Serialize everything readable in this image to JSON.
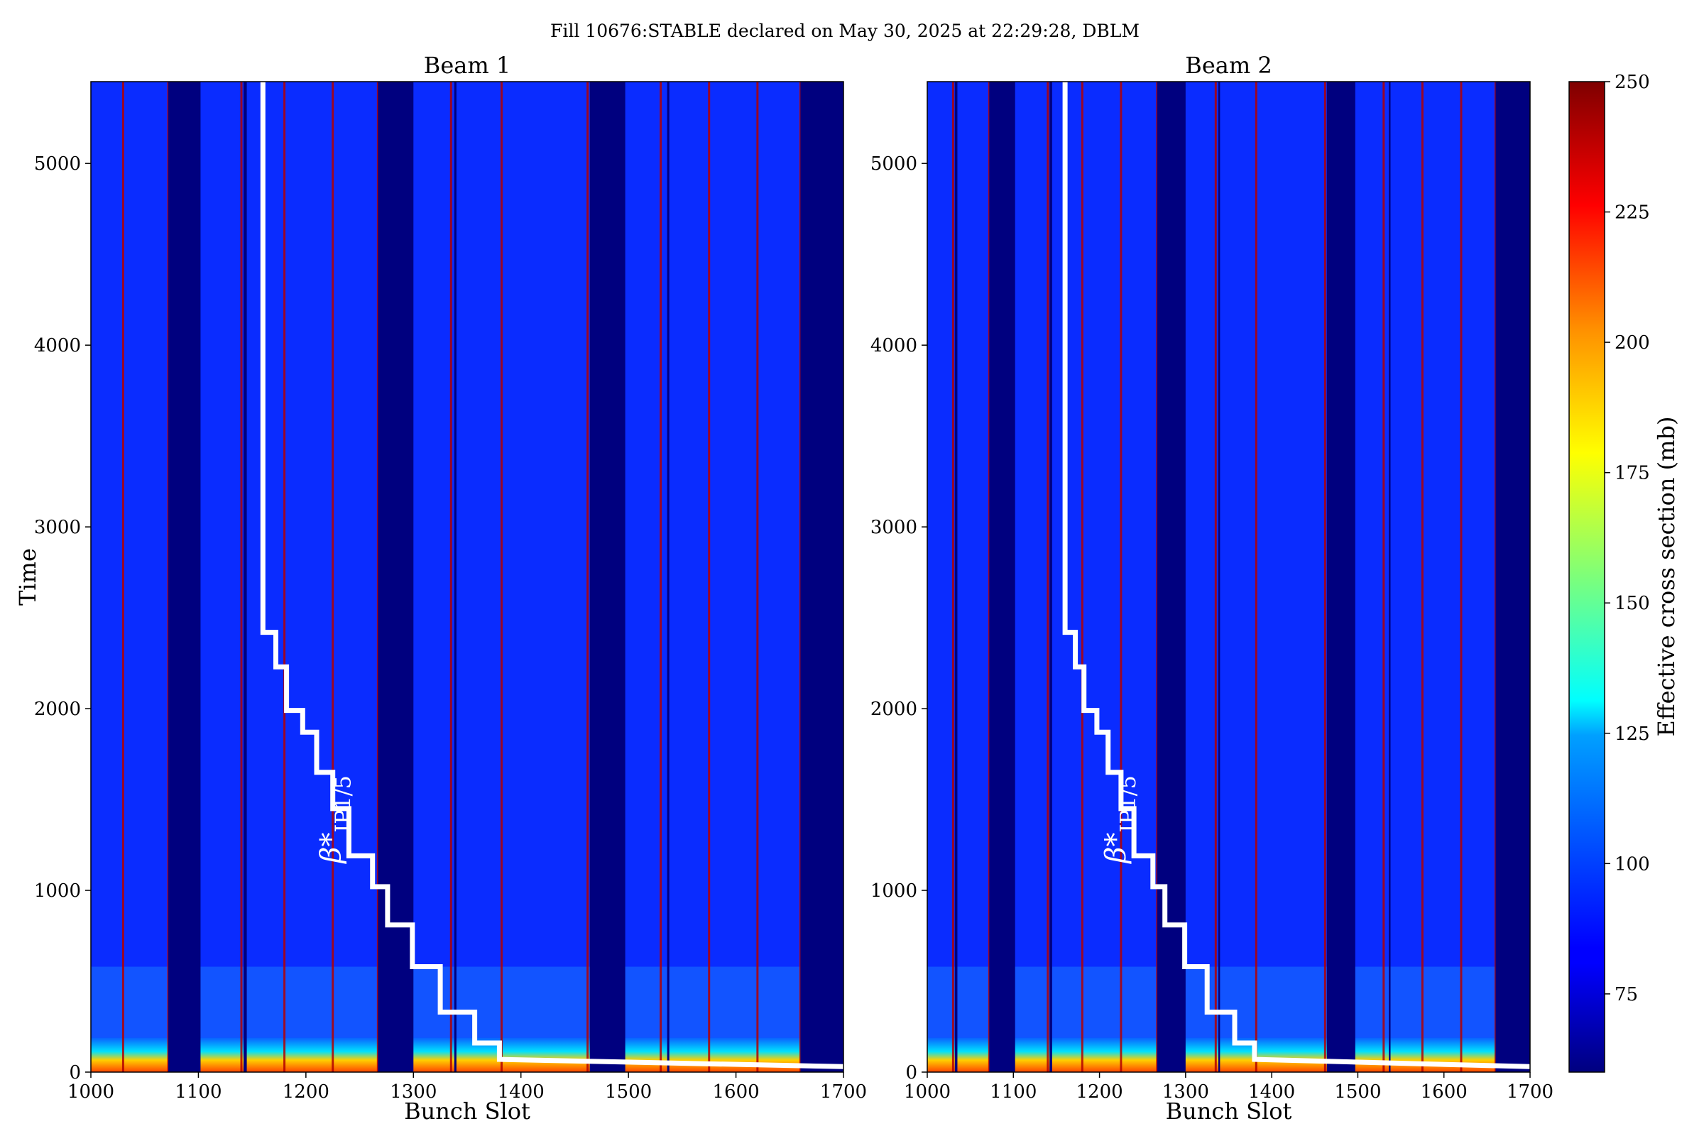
{
  "figure_title": "Fill 10676:STABLE declared on May 30, 2025 at 22:29:28, DBLM",
  "chart_data": [
    {
      "type": "heatmap",
      "title": "Beam 1",
      "xlabel": "Bunch Slot",
      "ylabel": "Time",
      "xlim": [
        1000,
        1700
      ],
      "ylim": [
        0,
        5450
      ],
      "xticks": [
        1000,
        1100,
        1200,
        1300,
        1400,
        1500,
        1600,
        1700
      ],
      "yticks": [
        0,
        1000,
        2000,
        3000,
        4000,
        5000
      ],
      "empty_gaps": [
        [
          1072,
          1102
        ],
        [
          1142,
          1145
        ],
        [
          1267,
          1300
        ],
        [
          1338,
          1340
        ],
        [
          1464,
          1497
        ],
        [
          1536,
          1538
        ],
        [
          1660,
          1700
        ]
      ],
      "edge_red_slots": [
        1030,
        1072,
        1140,
        1180,
        1225,
        1267,
        1335,
        1382,
        1462,
        1530,
        1575,
        1620,
        1660
      ],
      "beta_star_curve": {
        "label": "β*",
        "subscript": "IP1/5",
        "x": [
          1160,
          1160,
          1172,
          1172,
          1182,
          1182,
          1197,
          1197,
          1210,
          1210,
          1225,
          1225,
          1240,
          1240,
          1262,
          1262,
          1276,
          1276,
          1299,
          1299,
          1325,
          1325,
          1357,
          1357,
          1380,
          1380,
          1700
        ],
        "y": [
          5450,
          2420,
          2420,
          2230,
          2230,
          1990,
          1990,
          1870,
          1870,
          1650,
          1650,
          1450,
          1450,
          1190,
          1190,
          1020,
          1020,
          810,
          810,
          580,
          580,
          330,
          330,
          160,
          160,
          70,
          30
        ]
      }
    },
    {
      "type": "heatmap",
      "title": "Beam 2",
      "xlabel": "Bunch Slot",
      "ylabel": "",
      "xlim": [
        1000,
        1700
      ],
      "ylim": [
        0,
        5450
      ],
      "xticks": [
        1000,
        1100,
        1200,
        1300,
        1400,
        1500,
        1600,
        1700
      ],
      "yticks": [
        0,
        1000,
        2000,
        3000,
        4000,
        5000
      ],
      "empty_gaps": [
        [
          1032,
          1035
        ],
        [
          1072,
          1102
        ],
        [
          1142,
          1145
        ],
        [
          1267,
          1300
        ],
        [
          1338,
          1340
        ],
        [
          1464,
          1497
        ],
        [
          1536,
          1538
        ],
        [
          1660,
          1700
        ]
      ],
      "edge_red_slots": [
        1030,
        1072,
        1140,
        1180,
        1225,
        1267,
        1335,
        1382,
        1462,
        1530,
        1575,
        1620,
        1660
      ],
      "beta_star_curve": {
        "label": "β*",
        "subscript": "IP1/5",
        "x": [
          1160,
          1160,
          1172,
          1172,
          1182,
          1182,
          1197,
          1197,
          1210,
          1210,
          1225,
          1225,
          1240,
          1240,
          1262,
          1262,
          1276,
          1276,
          1299,
          1299,
          1325,
          1325,
          1357,
          1357,
          1380,
          1380,
          1700
        ],
        "y": [
          5450,
          2420,
          2420,
          2230,
          2230,
          1990,
          1990,
          1870,
          1870,
          1650,
          1650,
          1450,
          1450,
          1190,
          1190,
          1020,
          1020,
          810,
          810,
          580,
          580,
          330,
          330,
          160,
          160,
          70,
          30
        ]
      }
    }
  ],
  "colorbar": {
    "label": "Effective cross section (mb)",
    "range": [
      60,
      250
    ],
    "ticks": [
      75,
      100,
      125,
      150,
      175,
      200,
      225,
      250
    ],
    "colormap": "jet"
  },
  "colors": {
    "background_band": "#0a2cff",
    "gap": "#00007f",
    "curve": "#ffffff"
  }
}
